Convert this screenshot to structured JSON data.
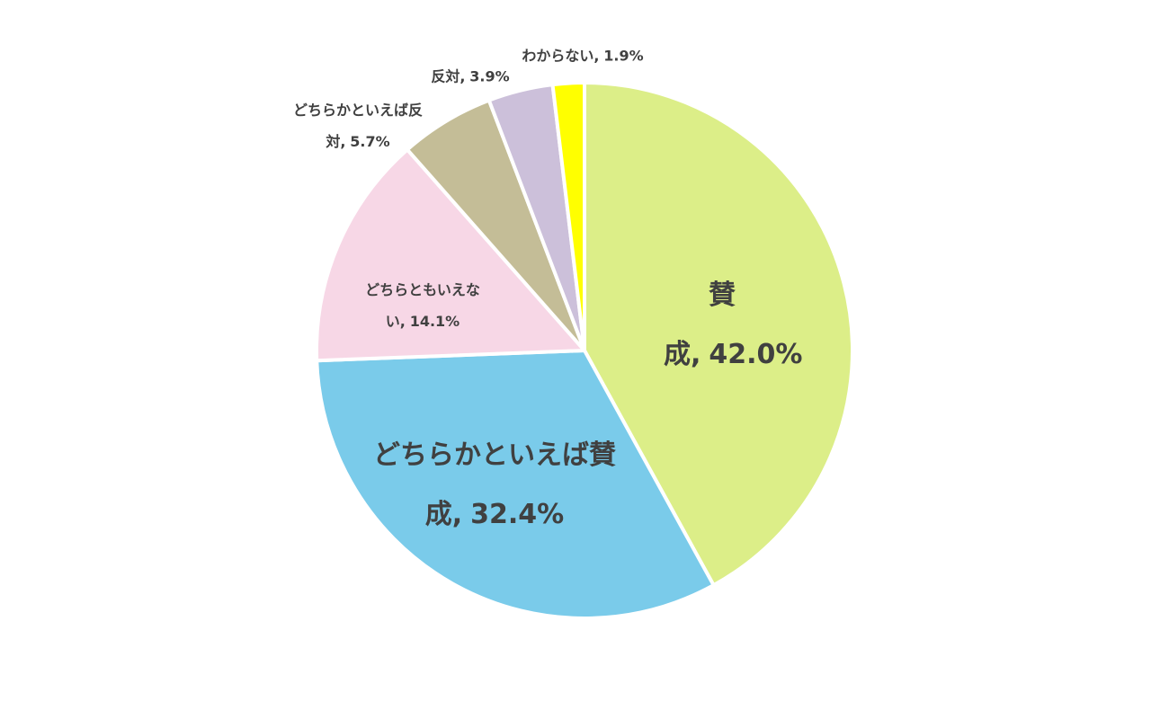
{
  "chart_data": {
    "type": "pie",
    "categories": [
      "賛成,",
      "どちらかといえば賛成,",
      "どちらともいえない,",
      "どちらかといえば反対,",
      "反対,",
      "わからない,"
    ],
    "values": [
      42.0,
      32.4,
      14.1,
      5.7,
      3.9,
      1.9
    ],
    "value_labels": [
      "42.0%",
      "32.4%",
      "14.1%",
      "5.7%",
      "3.9%",
      "1.9%"
    ],
    "colors": [
      "#dcee88",
      "#7acbea",
      "#f7d7e6",
      "#c4bd97",
      "#ccc0da",
      "#ffff00"
    ]
  }
}
